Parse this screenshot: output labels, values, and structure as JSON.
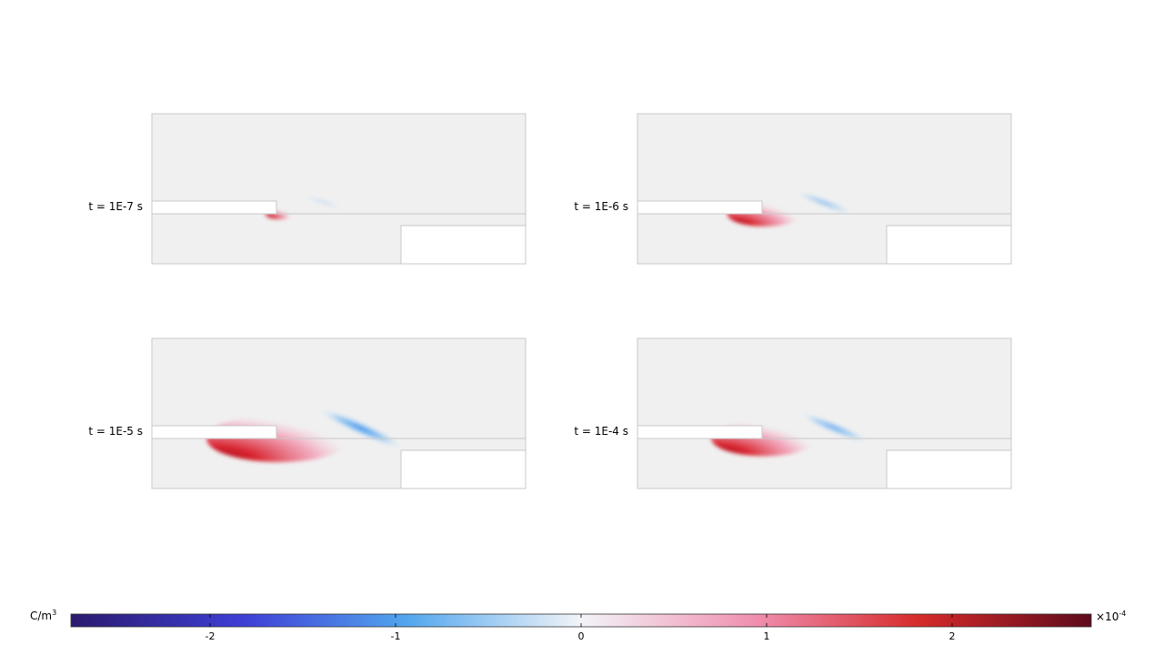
{
  "panels": [
    {
      "time_label": "t = 1E-7 s",
      "level": 0.08
    },
    {
      "time_label": "t = 1E-6 s",
      "level": 0.45
    },
    {
      "time_label": "t = 1E-5 s",
      "level": 1.0
    },
    {
      "time_label": "t = 1E-4 s",
      "level": 0.7
    }
  ],
  "colorbar": {
    "unit_base": "C/m",
    "unit_exp": "3",
    "scale_base": "×10",
    "scale_exp": "-4",
    "min": -2.75,
    "max": 2.75,
    "ticks": [
      "-2",
      "-1",
      "0",
      "1",
      "2"
    ],
    "tick_values": [
      -2,
      -1,
      0,
      1,
      2
    ],
    "colormap": [
      "#2b1a6e",
      "#3f3fd6",
      "#52a7ee",
      "#f2f4f8",
      "#f08fb0",
      "#d62b2b",
      "#5e0a1c"
    ]
  },
  "colors": {
    "domain_fill": "#f0f0f0",
    "domain_stroke": "#c8c8c8",
    "positive": "#c4141f",
    "negative": "#3a8ff0"
  }
}
